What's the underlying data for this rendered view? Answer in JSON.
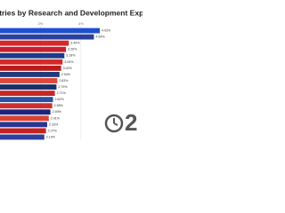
{
  "chart_data": {
    "type": "bar",
    "orientation": "horizontal",
    "title": "ntries by Research and Development Expe",
    "categories": [
      null,
      null,
      null,
      null,
      null,
      null,
      null,
      null,
      null,
      null,
      null,
      null,
      null,
      null,
      null,
      null,
      null,
      null
    ],
    "values": [
      4.93,
      4.64,
      3.4,
      3.26,
      3.18,
      3.09,
      3.02,
      2.94,
      2.83,
      2.79,
      2.71,
      2.62,
      2.58,
      2.49,
      2.41,
      2.33,
      2.27,
      2.19
    ],
    "value_labels": [
      "4.93%",
      "4.64%",
      "3.40%",
      "3.26%",
      "3.18%",
      "3.09%",
      "3.02%",
      "2.94%",
      "2.83%",
      "2.79%",
      "2.71%",
      "2.62%",
      "2.58%",
      "2.49%",
      "2.41%",
      "2.33%",
      "2.27%",
      "2.19%"
    ],
    "colors": [
      "#1f4fd1",
      "#2a3f9e",
      "#d42a2a",
      "#c8202f",
      "#1e3a8a",
      "#d62828",
      "#b71c1c",
      "#223a7a",
      "#e0463a",
      "#1b2f6b",
      "#c62828",
      "#2e4fa3",
      "#cf2f2f",
      "#1a237e",
      "#d84333",
      "#283593",
      "#c62020",
      "#303f9f"
    ],
    "xlim": [
      0,
      5.5
    ],
    "xticks": [
      {
        "value": 2,
        "label": "2%"
      },
      {
        "value": 4,
        "label": "4%"
      }
    ],
    "grid": true,
    "year": "2"
  }
}
